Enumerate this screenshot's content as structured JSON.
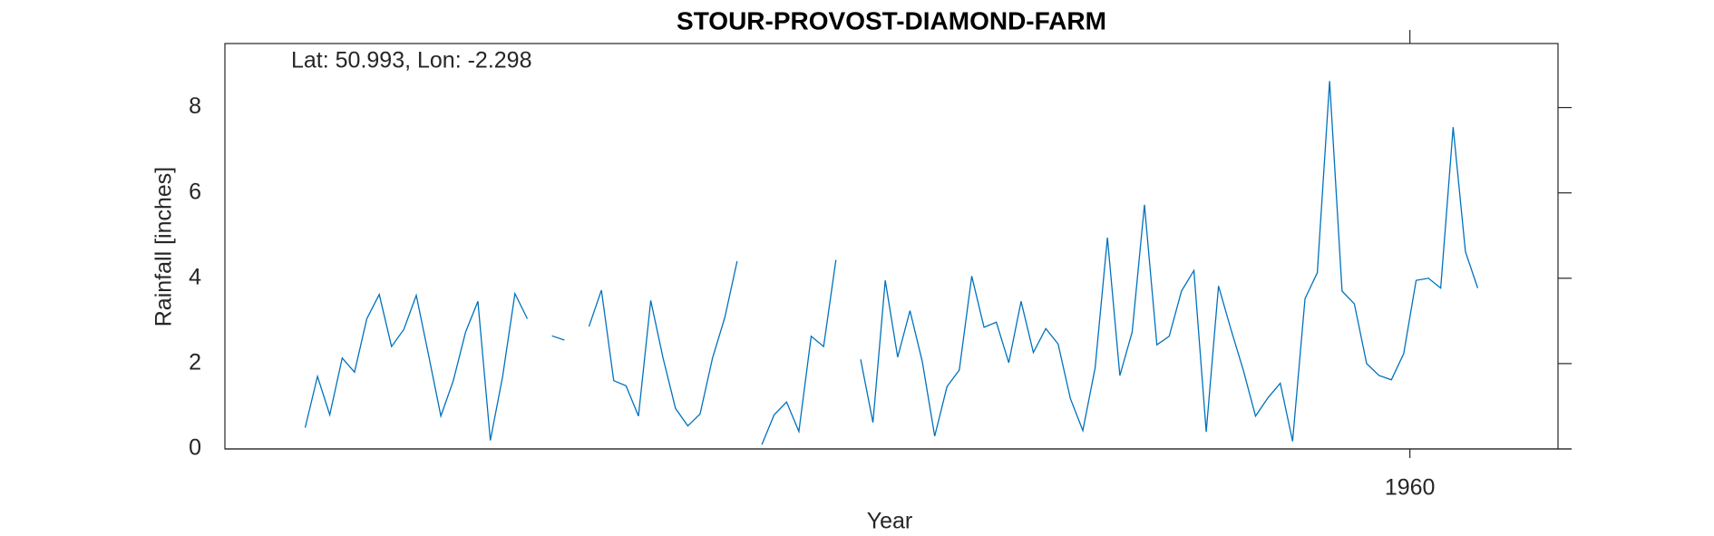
{
  "chart_data": {
    "type": "line",
    "title": "STOUR-PROVOST-DIAMOND-FARM",
    "annotation": "Lat: 50.993, Lon: -2.298",
    "xlabel": "Year",
    "ylabel": "Rainfall [inches]",
    "x": [
      1952.542,
      1952.625,
      1952.708,
      1952.792,
      1952.875,
      1952.958,
      1953.042,
      1953.125,
      1953.208,
      1953.292,
      1953.375,
      1953.458,
      1953.542,
      1953.625,
      1953.708,
      1953.792,
      1953.875,
      1953.958,
      1954.042,
      1954.125,
      1954.208,
      1954.292,
      1954.375,
      1954.458,
      1954.542,
      1954.625,
      1954.708,
      1954.792,
      1954.875,
      1954.958,
      1955.042,
      1955.125,
      1955.208,
      1955.292,
      1955.375,
      1955.458,
      1955.542,
      1955.625,
      1955.708,
      1955.792,
      1955.875,
      1955.958,
      1956.042,
      1956.125,
      1956.208,
      1956.292,
      1956.375,
      1956.458,
      1956.542,
      1956.625,
      1956.708,
      1956.792,
      1956.875,
      1956.958,
      1957.042,
      1957.125,
      1957.208,
      1957.292,
      1957.375,
      1957.458,
      1957.542,
      1957.625,
      1957.708,
      1957.792,
      1957.875,
      1957.958,
      1958.042,
      1958.125,
      1958.208,
      1958.292,
      1958.375,
      1958.458,
      1958.542,
      1958.625,
      1958.708,
      1958.792,
      1958.875,
      1958.958,
      1959.042,
      1959.125,
      1959.208,
      1959.292,
      1959.375,
      1959.458,
      1959.542,
      1959.625,
      1959.708,
      1959.792,
      1959.875,
      1959.958,
      1960.042,
      1960.125,
      1960.208,
      1960.292,
      1960.375,
      1960.458
    ],
    "series": [
      {
        "color": "#0072bd",
        "values": [
          0.5,
          1.7,
          0.8,
          2.13,
          1.8,
          3.05,
          3.62,
          2.4,
          2.8,
          3.6,
          2.2,
          0.77,
          1.6,
          2.74,
          3.46,
          0.2,
          1.7,
          3.64,
          3.05,
          null,
          2.65,
          2.55,
          null,
          2.87,
          3.72,
          1.6,
          1.48,
          0.77,
          3.48,
          2.13,
          0.95,
          0.54,
          0.82,
          2.13,
          3.08,
          4.4,
          null,
          0.1,
          0.8,
          1.1,
          0.41,
          2.64,
          2.4,
          4.43,
          null,
          2.1,
          0.62,
          3.95,
          2.15,
          3.24,
          2.05,
          0.3,
          1.46,
          1.85,
          4.05,
          2.85,
          2.97,
          2.02,
          3.46,
          2.26,
          2.82,
          2.46,
          1.18,
          0.43,
          1.9,
          4.95,
          1.72,
          2.74,
          5.72,
          2.44,
          2.64,
          3.7,
          4.18,
          0.4,
          3.82,
          2.8,
          1.85,
          0.77,
          1.2,
          1.54,
          0.18,
          3.52,
          4.13,
          8.62,
          3.7,
          3.4,
          2.0,
          1.72,
          1.62,
          2.23,
          3.95,
          4.0,
          3.77,
          7.54,
          4.62,
          3.77
        ]
      }
    ],
    "xlim": [
      1952,
      1961
    ],
    "xticks": [
      1960
    ],
    "ylim": [
      0,
      9.5
    ],
    "yticks": [
      0,
      2,
      4,
      6,
      8
    ],
    "grid": false
  }
}
